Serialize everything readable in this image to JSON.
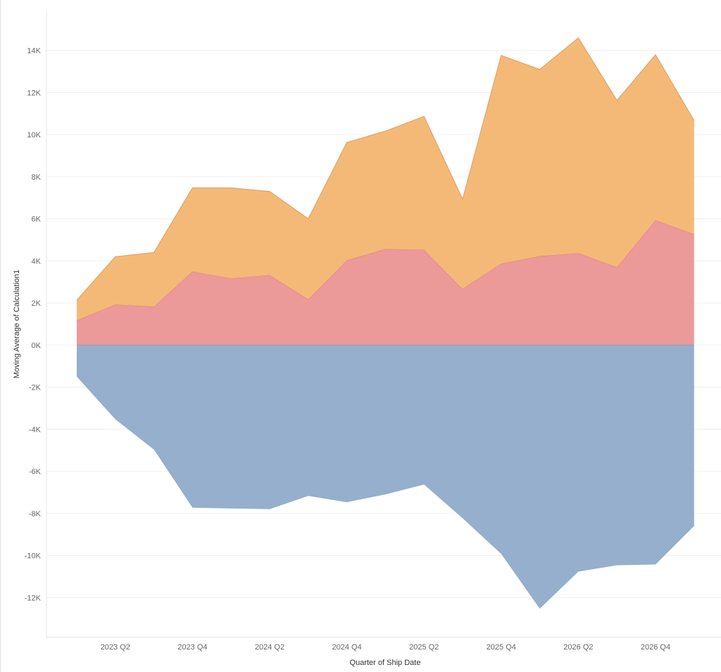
{
  "chart_data": {
    "type": "area",
    "stacked": true,
    "xlabel": "Quarter of Ship Date",
    "ylabel": "Moving Average of Calculation1",
    "x": [
      "2023 Q1",
      "2023 Q2",
      "2023 Q3",
      "2023 Q4",
      "2024 Q1",
      "2024 Q2",
      "2024 Q3",
      "2024 Q4",
      "2025 Q1",
      "2025 Q2",
      "2025 Q3",
      "2025 Q4",
      "2026 Q1",
      "2026 Q2",
      "2026 Q3",
      "2026 Q4",
      "2027 Q1"
    ],
    "x_tick_labels": [
      "2023 Q2",
      "2023 Q4",
      "2024 Q2",
      "2024 Q4",
      "2025 Q2",
      "2025 Q4",
      "2026 Q2",
      "2026 Q4"
    ],
    "y_tick_labels": [
      "14K",
      "12K",
      "10K",
      "8K",
      "6K",
      "4K",
      "2K",
      "0K",
      "-2K",
      "-4K",
      "-6K",
      "-8K",
      "-10K",
      "-12K"
    ],
    "y_ticks": [
      14000,
      12000,
      10000,
      8000,
      6000,
      4000,
      2000,
      0,
      -2000,
      -4000,
      -6000,
      -8000,
      -10000,
      -12000
    ],
    "ylim": [
      -13900,
      15900
    ],
    "grid": true,
    "series": [
      {
        "color": "#95afcc",
        "values": [
          -1500,
          -3530,
          -4970,
          -7730,
          -7770,
          -7800,
          -7170,
          -7470,
          -7100,
          -6630,
          -8230,
          -9930,
          -12530,
          -10770,
          -10470,
          -10430,
          -8600
        ]
      },
      {
        "color": "#eb9999",
        "values": [
          1170,
          1930,
          1830,
          3500,
          3170,
          3330,
          2170,
          4030,
          4570,
          4530,
          2670,
          3870,
          4230,
          4370,
          3700,
          5930,
          5270
        ]
      },
      {
        "color": "#f5b977",
        "values": [
          960,
          2270,
          2570,
          3970,
          4300,
          3970,
          3830,
          5600,
          5600,
          6340,
          4260,
          9900,
          8870,
          10230,
          7930,
          7870,
          5400
        ]
      }
    ]
  }
}
